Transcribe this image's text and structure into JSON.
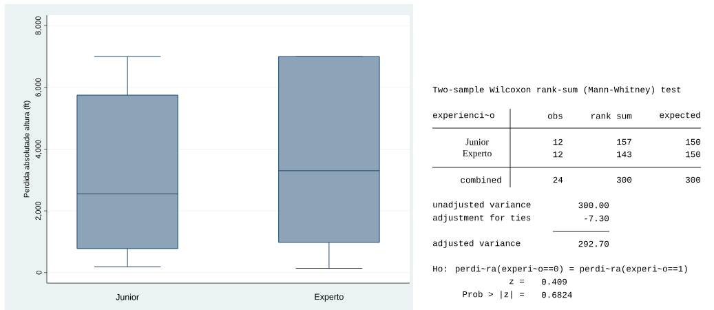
{
  "chart_data": [
    {
      "type": "box",
      "ylabel": "Perdida absolutade altura (ft)",
      "categories": [
        "Junior",
        "Experto"
      ],
      "series": [
        {
          "color": "#8da3b8",
          "boxes": [
            {
              "low": 190,
              "q1": 780,
              "median": 2550,
              "q3": 5750,
              "high": 7000
            },
            {
              "low": 140,
              "q1": 980,
              "median": 3300,
              "q3": 7000,
              "high": 7000
            }
          ]
        }
      ],
      "ylim": [
        -340,
        8340
      ],
      "yticks": [
        0,
        {
          "value": 2000,
          "label": "2,000"
        },
        {
          "value": 4000,
          "label": "4,000"
        },
        {
          "value": 6000,
          "label": "6,000"
        },
        {
          "value": 8000,
          "label": "8,000"
        }
      ],
      "grid": "y"
    },
    {
      "type": "other",
      "title": "Two-sample Wilcoxon rank-sum (Mann-Whitney) test",
      "annotations": [
        "experienci~o",
        "obs",
        "rank sum",
        "expected",
        "Junior",
        "12",
        "157",
        "150",
        "Experto",
        "12",
        "143",
        "150",
        "combined",
        "24",
        "300",
        "300",
        "unadjusted variance",
        "300.00",
        "adjustment for ties",
        "-7.30",
        "adjusted variance",
        "292.70",
        "Ho: perdi~ra(experi~o==0) = perdi~ra(experi~o==1)",
        "z =",
        "0.409",
        "Prob > |z| =",
        "0.6824"
      ]
    }
  ]
}
